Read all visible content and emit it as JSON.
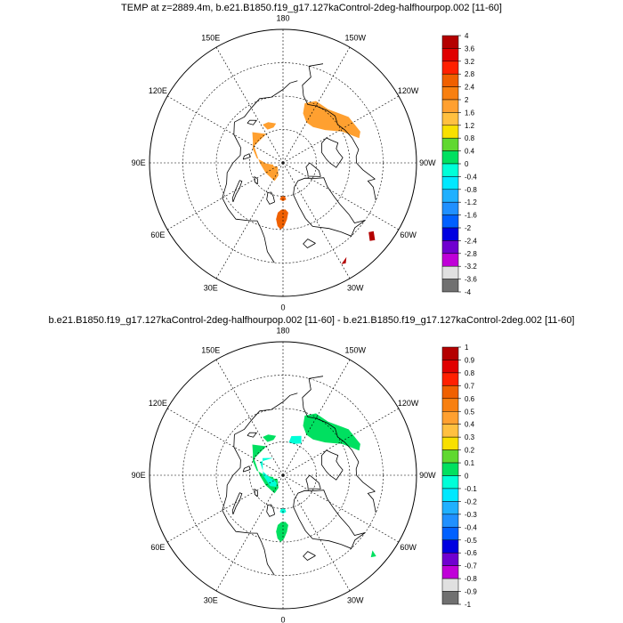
{
  "chart_data": [
    {
      "type": "polar-map",
      "title": "TEMP at z=2889.4m, b.e21.B1850.f19_g17.127kaControl-2deg-halfhourpop.002 [11-60]",
      "lon_labels": [
        "180",
        "150E",
        "120E",
        "90E",
        "60E",
        "30E",
        "0",
        "30W",
        "60W",
        "90W",
        "120W",
        "150W"
      ],
      "colorbar_levels": [
        "4",
        "3.6",
        "3.2",
        "2.8",
        "2.4",
        "2",
        "1.6",
        "1.2",
        "0.8",
        "0.4",
        "0",
        "-0.4",
        "-0.8",
        "-1.2",
        "-1.6",
        "-2",
        "-2.4",
        "-2.8",
        "-3.2",
        "-3.6",
        "-4"
      ],
      "colorbar_colors": [
        "#b40000",
        "#e00000",
        "#ff2000",
        "#f06000",
        "#f88010",
        "#ffa030",
        "#ffc040",
        "#f8e000",
        "#60d830",
        "#00e060",
        "#00ffd8",
        "#00e8ff",
        "#20b0ff",
        "#2090ff",
        "#0060ff",
        "#0000e0",
        "#7000d0",
        "#c000d8",
        "#e0e0e0",
        "#707070"
      ],
      "patches": [
        {
          "color": "#ffa030",
          "lonlat": [
            [
              -108,
              66
            ],
            [
              -118,
              70
            ],
            [
              -128,
              74
            ],
            [
              -140,
              76
            ],
            [
              -150,
              76
            ],
            [
              -158,
              74
            ],
            [
              -160,
              71
            ],
            [
              -152,
              69
            ],
            [
              -140,
              69
            ],
            [
              -125,
              66
            ],
            [
              -112,
              65
            ]
          ]
        },
        {
          "color": "#ffa030",
          "lonlat": [
            [
              150,
              80
            ],
            [
              135,
              77
            ],
            [
              125,
              79
            ],
            [
              115,
              80
            ],
            [
              100,
              82
            ],
            [
              88,
              85
            ],
            [
              80,
              87
            ],
            [
              70,
              87
            ],
            [
              55,
              88
            ],
            [
              30,
              87
            ],
            [
              20,
              86
            ],
            [
              25,
              84
            ],
            [
              60,
              84
            ],
            [
              90,
              83
            ],
            [
              120,
              80
            ]
          ]
        },
        {
          "color": "#ffa030",
          "lonlat": [
            [
              170,
              78
            ],
            [
              160,
              77
            ],
            [
              152,
              77
            ],
            [
              155,
              79
            ],
            [
              165,
              79
            ]
          ]
        },
        {
          "color": "#f06000",
          "lonlat": [
            [
              3,
              80
            ],
            [
              -3,
              80
            ],
            [
              -5,
              79
            ],
            [
              0,
              78.5
            ],
            [
              5,
              79
            ]
          ]
        },
        {
          "color": "#f06000",
          "lonlat": [
            [
              6,
              75
            ],
            [
              2,
              76
            ],
            [
              -3,
              76
            ],
            [
              -6,
              75
            ],
            [
              -4,
              73
            ],
            [
              -1,
              71
            ],
            [
              2,
              70
            ],
            [
              5,
              71
            ],
            [
              7,
              73
            ]
          ]
        },
        {
          "color": "#b40000",
          "lonlat": [
            [
              -48,
              55
            ],
            [
              -51,
              57
            ],
            [
              -53,
              56
            ],
            [
              -50,
              54
            ]
          ]
        },
        {
          "color": "#b40000",
          "lonlat": [
            [
              -30,
              55
            ],
            [
              -34,
              56
            ],
            [
              -32,
              54.5
            ]
          ]
        }
      ]
    },
    {
      "type": "polar-map",
      "title": "b.e21.B1850.f19_g17.127kaControl-2deg-halfhourpop.002 [11-60] - b.e21.B1850.f19_g17.127kaControl-2deg.002 [11-60]",
      "lon_labels": [
        "180",
        "150E",
        "120E",
        "90E",
        "60E",
        "30E",
        "0",
        "30W",
        "60W",
        "90W",
        "120W",
        "150W"
      ],
      "colorbar_levels": [
        "1",
        "0.9",
        "0.8",
        "0.7",
        "0.6",
        "0.5",
        "0.4",
        "0.3",
        "0.2",
        "0.1",
        "0",
        "-0.1",
        "-0.2",
        "-0.3",
        "-0.4",
        "-0.5",
        "-0.6",
        "-0.7",
        "-0.8",
        "-0.9",
        "-1"
      ],
      "colorbar_colors": [
        "#b40000",
        "#e00000",
        "#ff2000",
        "#f06000",
        "#f88010",
        "#ffa030",
        "#ffc040",
        "#f8e000",
        "#60d830",
        "#00e060",
        "#00ffd8",
        "#00e8ff",
        "#20b0ff",
        "#2090ff",
        "#0060ff",
        "#0000e0",
        "#7000d0",
        "#c000d8",
        "#e0e0e0",
        "#707070"
      ],
      "patches": [
        {
          "color": "#00e060",
          "lonlat": [
            [
              -108,
              66
            ],
            [
              -118,
              70
            ],
            [
              -128,
              74
            ],
            [
              -140,
              76
            ],
            [
              -150,
              76
            ],
            [
              -158,
              74
            ],
            [
              -160,
              71
            ],
            [
              -152,
              69
            ],
            [
              -140,
              69
            ],
            [
              -125,
              66
            ],
            [
              -112,
              65
            ]
          ]
        },
        {
          "color": "#00ffd8",
          "lonlat": [
            [
              -150,
              79
            ],
            [
              -160,
              80
            ],
            [
              -170,
              80
            ],
            [
              -168,
              78
            ],
            [
              -155,
              77
            ]
          ]
        },
        {
          "color": "#00e060",
          "lonlat": [
            [
              150,
              80
            ],
            [
              135,
              77
            ],
            [
              125,
              79
            ],
            [
              115,
              80
            ],
            [
              100,
              82
            ],
            [
              88,
              85
            ],
            [
              80,
              87
            ],
            [
              70,
              87
            ],
            [
              55,
              88
            ],
            [
              30,
              87
            ],
            [
              20,
              86
            ],
            [
              25,
              84
            ],
            [
              60,
              84
            ],
            [
              90,
              83
            ],
            [
              120,
              80
            ]
          ]
        },
        {
          "color": "#00ffd8",
          "lonlat": [
            [
              150,
              84
            ],
            [
              120,
              82
            ],
            [
              100,
              84
            ],
            [
              80,
              86
            ],
            [
              60,
              87
            ],
            [
              40,
              87
            ],
            [
              30,
              86
            ],
            [
              50,
              85
            ],
            [
              90,
              84
            ],
            [
              130,
              82
            ]
          ]
        },
        {
          "color": "#00e060",
          "lonlat": [
            [
              170,
              78
            ],
            [
              160,
              77
            ],
            [
              152,
              77
            ],
            [
              155,
              79
            ],
            [
              165,
              79
            ]
          ]
        },
        {
          "color": "#00ffd8",
          "lonlat": [
            [
              3,
              80
            ],
            [
              -3,
              80
            ],
            [
              -5,
              79
            ],
            [
              0,
              78.5
            ],
            [
              5,
              79
            ]
          ]
        },
        {
          "color": "#00e060",
          "lonlat": [
            [
              6,
              75
            ],
            [
              2,
              76
            ],
            [
              -3,
              76
            ],
            [
              -6,
              75
            ],
            [
              -4,
              73
            ],
            [
              -1,
              71
            ],
            [
              2,
              70
            ],
            [
              5,
              71
            ],
            [
              7,
              73
            ]
          ]
        },
        {
          "color": "#00e060",
          "lonlat": [
            [
              -47,
              54
            ],
            [
              -50,
              55
            ],
            [
              -49,
              53
            ]
          ]
        }
      ]
    }
  ]
}
